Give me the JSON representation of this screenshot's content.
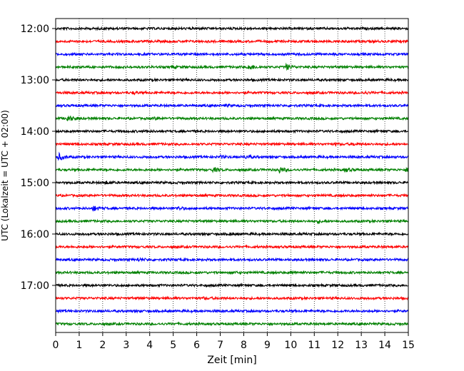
{
  "chart_data": {
    "type": "line",
    "title": "",
    "xlabel": "Zeit  [min]",
    "ylabel": "UTC (Lokalzeit = UTC + 02:00)",
    "xlim": [
      0,
      15
    ],
    "x_ticks": [
      0,
      1,
      2,
      3,
      4,
      5,
      6,
      7,
      8,
      9,
      10,
      11,
      12,
      13,
      14,
      15
    ],
    "y_ticks": [
      "12:00",
      "13:00",
      "14:00",
      "15:00",
      "16:00",
      "17:00"
    ],
    "grid_x": true,
    "grid_style": "dotted",
    "trace_minutes": 15,
    "start_time": "12:00",
    "colors_cycle": [
      "#000000",
      "#ff0000",
      "#0000ff",
      "#008000"
    ],
    "traces": [
      {
        "start": "12:00",
        "color": "#000000",
        "events": []
      },
      {
        "start": "12:15",
        "color": "#ff0000",
        "events": []
      },
      {
        "start": "12:30",
        "color": "#0000ff",
        "events": []
      },
      {
        "start": "12:45",
        "color": "#008000",
        "events": [
          {
            "t": 4.9,
            "a": 0.25
          },
          {
            "t": 8.2,
            "a": 0.9
          },
          {
            "t": 9.8,
            "a": 0.7
          }
        ]
      },
      {
        "start": "13:00",
        "color": "#000000",
        "events": []
      },
      {
        "start": "13:15",
        "color": "#ff0000",
        "events": [
          {
            "t": 3.3,
            "a": 0.25
          },
          {
            "t": 13.1,
            "a": 0.25
          }
        ]
      },
      {
        "start": "13:30",
        "color": "#0000ff",
        "events": [
          {
            "t": 7.2,
            "a": 0.2
          }
        ]
      },
      {
        "start": "13:45",
        "color": "#008000",
        "events": [
          {
            "t": 0.5,
            "a": 0.85
          },
          {
            "t": 4.2,
            "a": 0.2
          }
        ]
      },
      {
        "start": "14:00",
        "color": "#000000",
        "events": [
          {
            "t": 3.7,
            "a": 0.2
          }
        ]
      },
      {
        "start": "14:15",
        "color": "#ff0000",
        "events": [
          {
            "t": 11.9,
            "a": 0.2
          },
          {
            "t": 12.6,
            "a": 0.3
          }
        ]
      },
      {
        "start": "14:30",
        "color": "#0000ff",
        "events": [
          {
            "t": 0.1,
            "a": 1.0
          },
          {
            "t": 7.0,
            "a": 0.3
          },
          {
            "t": 8.1,
            "a": 0.4
          }
        ]
      },
      {
        "start": "14:45",
        "color": "#008000",
        "events": [
          {
            "t": 6.7,
            "a": 0.45
          },
          {
            "t": 9.5,
            "a": 0.8
          },
          {
            "t": 12.3,
            "a": 0.5
          },
          {
            "t": 14.9,
            "a": 0.4
          }
        ]
      },
      {
        "start": "15:00",
        "color": "#000000",
        "events": [
          {
            "t": 2.1,
            "a": 0.35
          }
        ]
      },
      {
        "start": "15:15",
        "color": "#ff0000",
        "events": []
      },
      {
        "start": "15:30",
        "color": "#0000ff",
        "events": [
          {
            "t": 1.6,
            "a": 0.65
          },
          {
            "t": 5.2,
            "a": 0.4
          }
        ]
      },
      {
        "start": "15:45",
        "color": "#008000",
        "events": [
          {
            "t": 11.1,
            "a": 0.3
          }
        ]
      },
      {
        "start": "16:00",
        "color": "#000000",
        "events": [
          {
            "t": 7.4,
            "a": 0.3
          }
        ]
      },
      {
        "start": "16:15",
        "color": "#ff0000",
        "events": []
      },
      {
        "start": "16:30",
        "color": "#0000ff",
        "events": [
          {
            "t": 3.5,
            "a": 0.3
          }
        ]
      },
      {
        "start": "16:45",
        "color": "#008000",
        "events": [
          {
            "t": 7.5,
            "a": 0.2
          },
          {
            "t": 10.0,
            "a": 0.2
          }
        ]
      },
      {
        "start": "17:00",
        "color": "#000000",
        "events": []
      },
      {
        "start": "17:15",
        "color": "#ff0000",
        "events": [
          {
            "t": 6.3,
            "a": 0.2
          }
        ]
      },
      {
        "start": "17:30",
        "color": "#0000ff",
        "events": []
      },
      {
        "start": "17:45",
        "color": "#008000",
        "events": []
      }
    ]
  }
}
